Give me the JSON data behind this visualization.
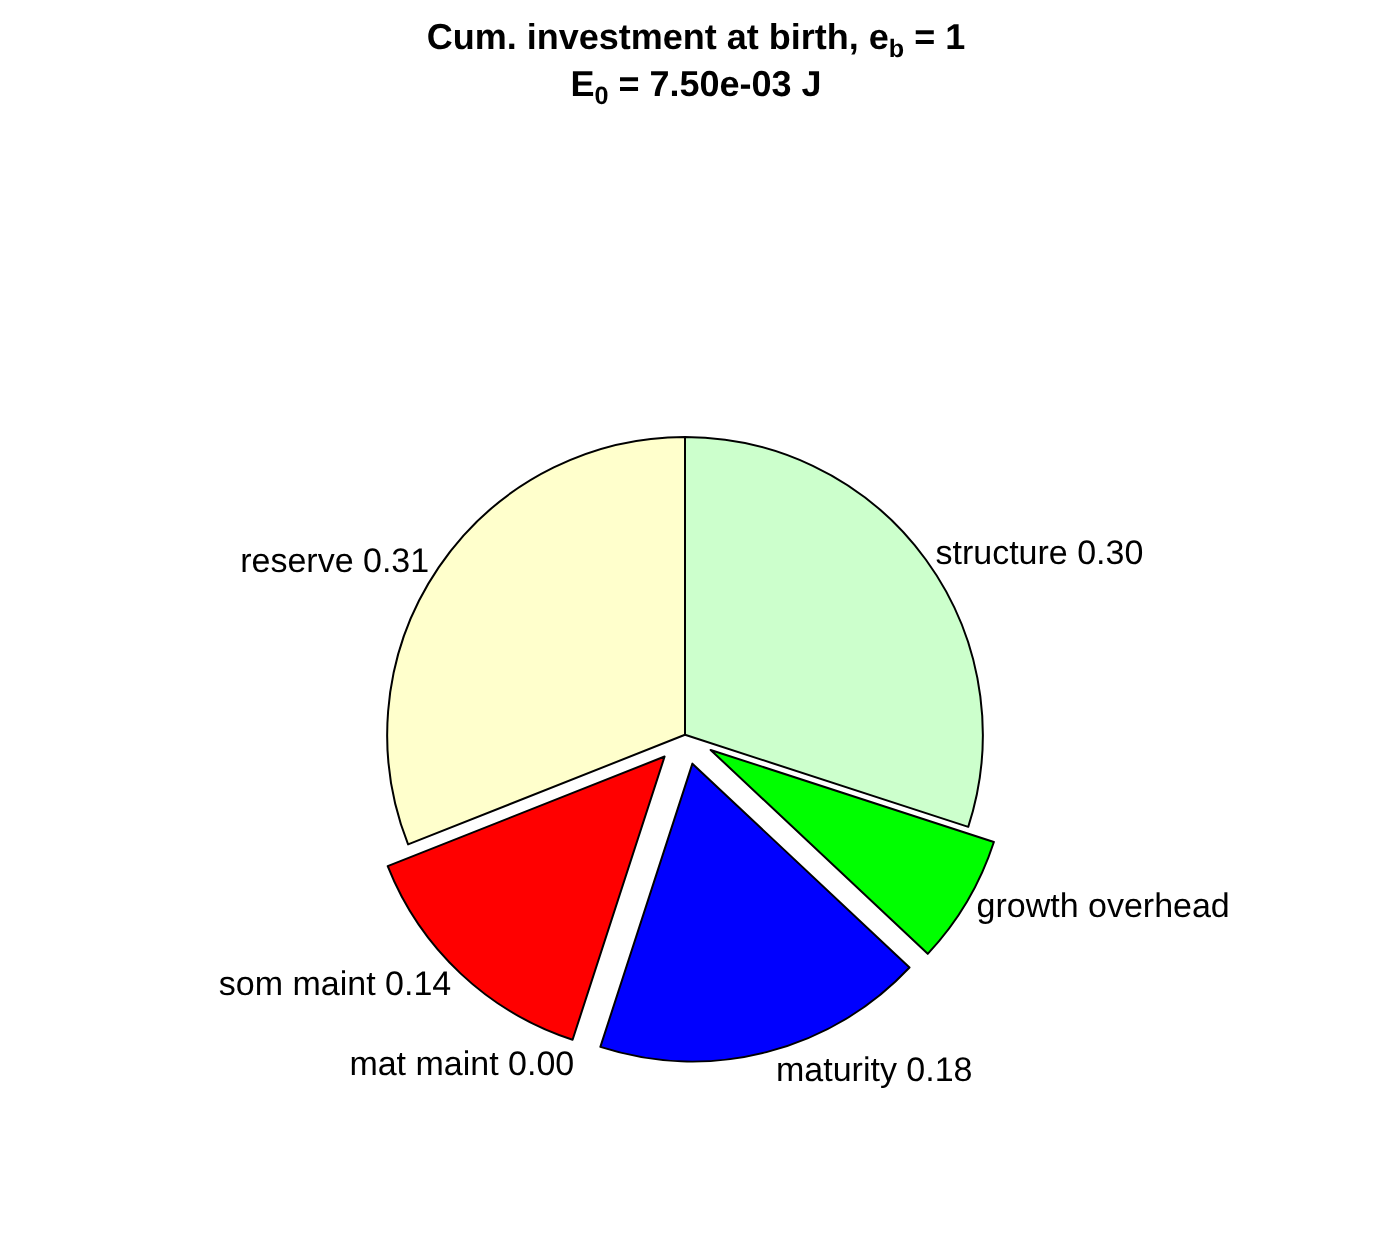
{
  "chart_data": {
    "type": "pie",
    "title": "Cum. investment at birth, e$_{b}$ = 1",
    "subtitle": "E$_{0}$ = 7.50e-03 J",
    "categories": [
      "structure",
      "growth overhead",
      "maturity",
      "mat maint",
      "som maint",
      "reserve"
    ],
    "values": [
      0.3,
      0.07,
      0.18,
      0.0,
      0.14,
      0.31
    ],
    "value_labels": [
      "0.30",
      null,
      "0.18",
      "0.00",
      "0.14",
      "0.31"
    ],
    "colors": [
      "#ccffcc",
      "#00ff00",
      "#0000ff",
      "#ffffff",
      "#ff0000",
      "#ffffcc"
    ],
    "legend": false
  }
}
